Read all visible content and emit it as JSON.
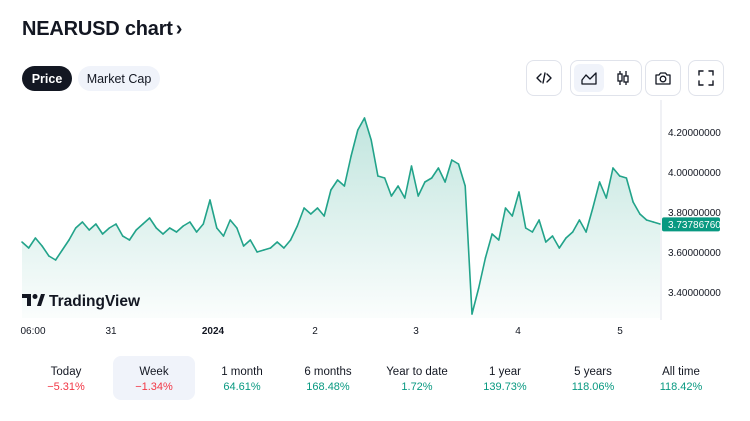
{
  "header": {
    "title": "NEARUSD chart",
    "chevron": "›"
  },
  "tabs": [
    {
      "label": "Price",
      "active": true
    },
    {
      "label": "Market Cap",
      "active": false
    }
  ],
  "toolbar": {
    "embed_icon": "code-icon",
    "line_chart_icon": "area-chart-icon",
    "candles_icon": "candlestick-icon",
    "snapshot_icon": "camera-icon",
    "fullscreen_icon": "fullscreen-icon"
  },
  "brand": {
    "name": "TradingView"
  },
  "colors": {
    "line": "#22a38a",
    "badge": "#089981",
    "negative": "#f23645",
    "positive": "#089981"
  },
  "chart_data": {
    "type": "area",
    "title": "",
    "xlabel": "",
    "ylabel": "",
    "x_ticks": [
      "06:00",
      "31",
      "2024",
      "2",
      "3",
      "4",
      "5"
    ],
    "y_ticks": [
      "4.20000000",
      "4.00000000",
      "3.80000000",
      "3.60000000",
      "3.40000000"
    ],
    "ylim": [
      3.27,
      4.32
    ],
    "last_value": "3.73786760",
    "series": [
      {
        "values": [
          3.65,
          3.62,
          3.67,
          3.63,
          3.58,
          3.56,
          3.61,
          3.66,
          3.72,
          3.75,
          3.71,
          3.74,
          3.69,
          3.72,
          3.74,
          3.68,
          3.66,
          3.71,
          3.74,
          3.77,
          3.72,
          3.69,
          3.72,
          3.7,
          3.73,
          3.75,
          3.7,
          3.74,
          3.86,
          3.72,
          3.68,
          3.76,
          3.72,
          3.63,
          3.66,
          3.6,
          3.61,
          3.62,
          3.65,
          3.62,
          3.66,
          3.73,
          3.82,
          3.79,
          3.82,
          3.78,
          3.91,
          3.96,
          3.93,
          4.08,
          4.21,
          4.27,
          4.16,
          3.98,
          3.97,
          3.88,
          3.93,
          3.87,
          4.03,
          3.88,
          3.95,
          3.97,
          4.02,
          3.95,
          4.06,
          4.04,
          3.93,
          3.29,
          3.42,
          3.57,
          3.69,
          3.66,
          3.82,
          3.78,
          3.9,
          3.72,
          3.7,
          3.76,
          3.65,
          3.68,
          3.62,
          3.67,
          3.7,
          3.76,
          3.7,
          3.82,
          3.95,
          3.87,
          4.02,
          3.98,
          3.97,
          3.85,
          3.79,
          3.76,
          3.75,
          3.74
        ]
      }
    ],
    "legend": "none",
    "grid": false
  },
  "periods": [
    {
      "label": "Today",
      "value": "−5.31%",
      "sign": "neg",
      "selected": false
    },
    {
      "label": "Week",
      "value": "−1.34%",
      "sign": "neg",
      "selected": true
    },
    {
      "label": "1 month",
      "value": "64.61%",
      "sign": "pos",
      "selected": false
    },
    {
      "label": "6 months",
      "value": "168.48%",
      "sign": "pos",
      "selected": false
    },
    {
      "label": "Year to date",
      "value": "1.72%",
      "sign": "pos",
      "selected": false
    },
    {
      "label": "1 year",
      "value": "139.73%",
      "sign": "pos",
      "selected": false
    },
    {
      "label": "5 years",
      "value": "118.06%",
      "sign": "pos",
      "selected": false
    },
    {
      "label": "All time",
      "value": "118.42%",
      "sign": "pos",
      "selected": false
    }
  ]
}
